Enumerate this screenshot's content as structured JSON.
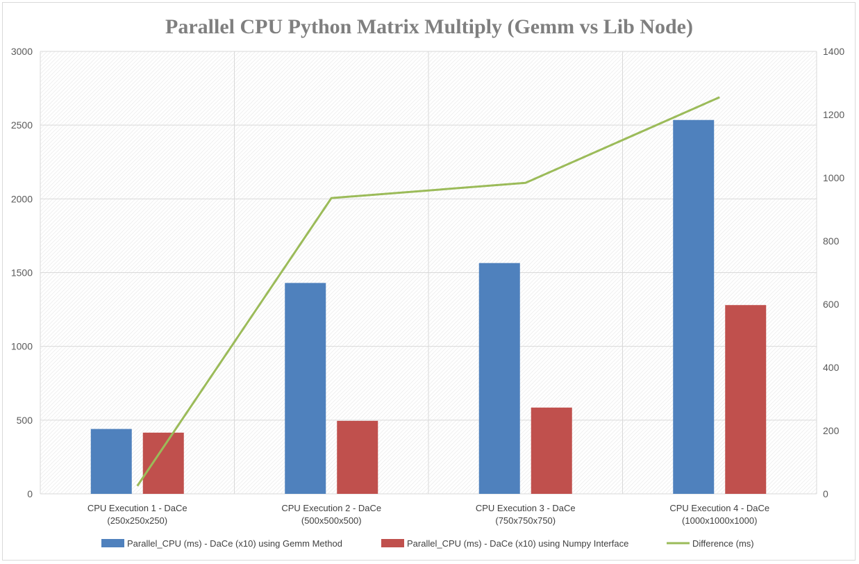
{
  "chart_data": {
    "type": "bar",
    "title": "Parallel CPU Python Matrix Multiply (Gemm vs Lib Node)",
    "categories": [
      [
        "CPU Execution 1 - DaCe",
        "(250x250x250)"
      ],
      [
        "CPU Execution 2 - DaCe",
        "(500x500x500)"
      ],
      [
        "CPU Execution 3 - DaCe",
        "(750x750x750)"
      ],
      [
        "CPU Execution 4 - DaCe",
        "(1000x1000x1000)"
      ]
    ],
    "y_left": {
      "min": 0,
      "max": 3000,
      "step": 500,
      "ticks": [
        "0",
        "500",
        "1000",
        "1500",
        "2000",
        "2500",
        "3000"
      ]
    },
    "y_right": {
      "min": 0,
      "max": 1400,
      "step": 200,
      "ticks": [
        "0",
        "200",
        "400",
        "600",
        "800",
        "1000",
        "1200",
        "1400"
      ]
    },
    "grid": true,
    "legend_position": "bottom",
    "series": [
      {
        "name": "Parallel_CPU (ms) - DaCe (x10) using Gemm Method",
        "type": "bar",
        "axis": "left",
        "color": "#4f81bd",
        "values": [
          440,
          1430,
          1565,
          2535
        ]
      },
      {
        "name": "Parallel_CPU (ms) - DaCe (x10) using Numpy Interface",
        "type": "bar",
        "axis": "left",
        "color": "#c0504d",
        "values": [
          415,
          495,
          585,
          1280
        ]
      },
      {
        "name": "Difference (ms)",
        "type": "line",
        "axis": "right",
        "color": "#9bbb59",
        "values": [
          25,
          936,
          984,
          1255
        ]
      }
    ]
  }
}
